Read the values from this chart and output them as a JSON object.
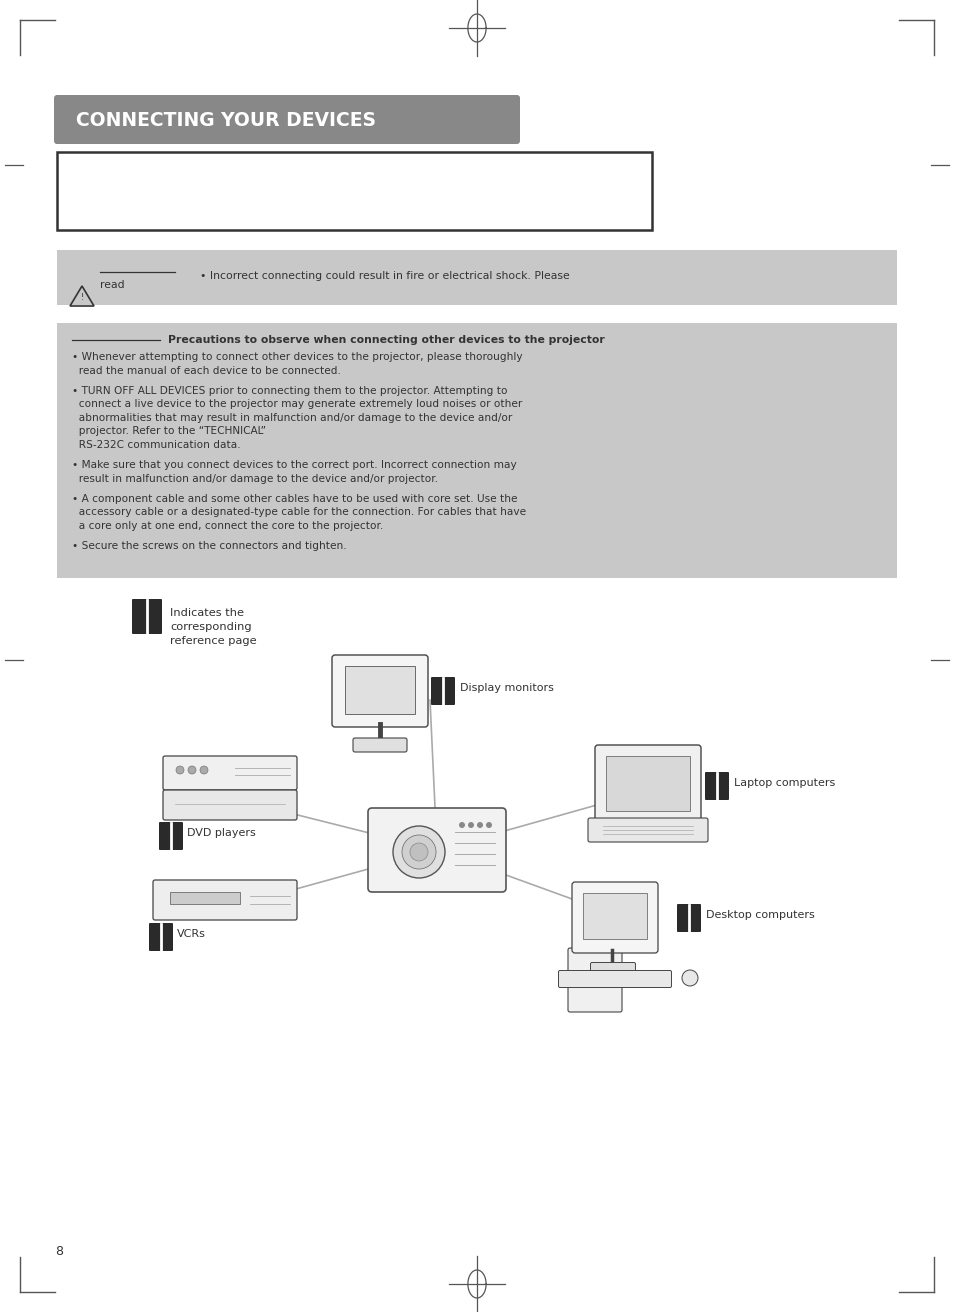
{
  "title": "CONNECTING YOUR DEVICES",
  "title_bg": "#888888",
  "title_text_color": "#ffffff",
  "page_bg": "#ffffff",
  "page_number": "8",
  "warn_bg": "#c8c8c8",
  "prec_bg": "#c8c8c8",
  "precautions_title": "Precautions to observe when connecting other devices to the projector",
  "bullet1a": "• Whenever attempting to connect other devices to the projector, please thoroughly",
  "bullet1b": "  read the manual of each device to be connected.",
  "bullet2a": "• TURN OFF ALL DEVICES prior to connecting them to the projector. Attempting to",
  "bullet2b": "  connect a live device to the projector may generate extremely loud noises or other",
  "bullet2c": "  abnormalities that may result in malfunction and/or damage to the device and/or",
  "bullet2d": "  projector. Refer to the “TECHNICAL”",
  "bullet2e": "  RS-232C communication data.",
  "bullet3a": "• Make sure that you connect devices to the correct port. Incorrect connection may",
  "bullet3b": "  result in malfunction and/or damage to the device and/or projector.",
  "bullet4a": "• A component cable and some other cables have to be used with core set. Use the",
  "bullet4b": "  accessory cable or a designated-type cable for the connection. For cables that have",
  "bullet4c": "  a core only at one end, connect the core to the projector.",
  "bullet5": "• Secure the screws on the connectors and tighten.",
  "warn_line1": "• Incorrect connecting could result in fire or electrical shock. Please",
  "warn_line2": "read",
  "legend_text": "Indicates the\ncorresponding\nreference page",
  "text_color": "#333333",
  "book_color": "#2a2a2a",
  "line_color": "#aaaaaa",
  "border_color": "#555555"
}
